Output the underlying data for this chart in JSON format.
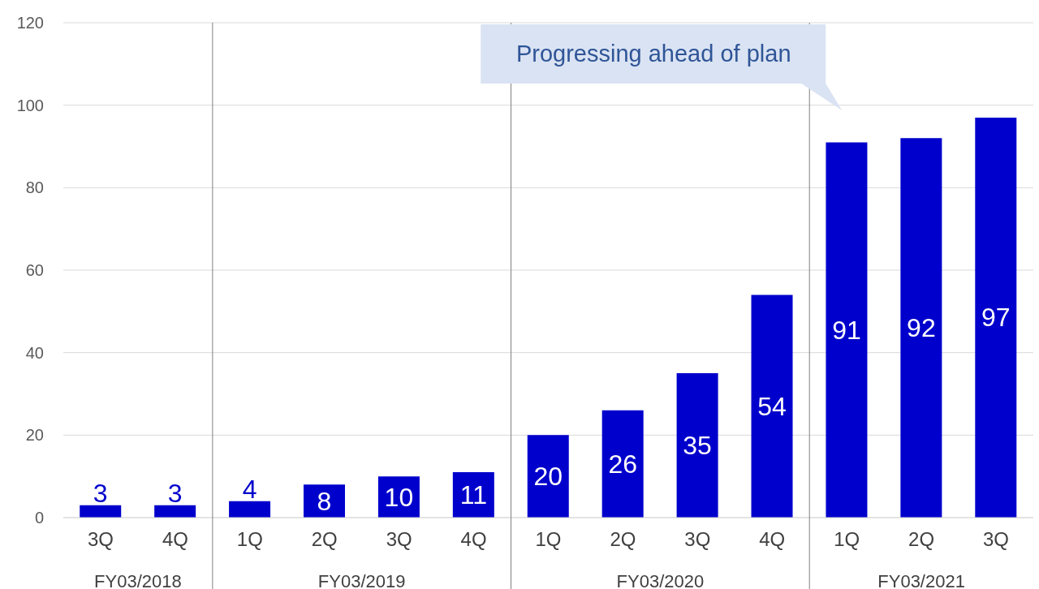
{
  "chart_data": {
    "type": "bar",
    "categories": [
      "3Q",
      "4Q",
      "1Q",
      "2Q",
      "3Q",
      "4Q",
      "1Q",
      "2Q",
      "3Q",
      "4Q",
      "1Q",
      "2Q",
      "3Q"
    ],
    "values": [
      3,
      3,
      4,
      8,
      10,
      11,
      20,
      26,
      35,
      54,
      91,
      92,
      97
    ],
    "color": "#0000cc",
    "ylim": [
      0,
      120
    ],
    "yticks": [
      0,
      20,
      40,
      60,
      80,
      100,
      120
    ],
    "grid": "y",
    "data_labels": true,
    "annotations": [
      "Progressing ahead of plan",
      "FY03/2018",
      "FY03/2019",
      "FY03/2020",
      "FY03/2021"
    ]
  }
}
